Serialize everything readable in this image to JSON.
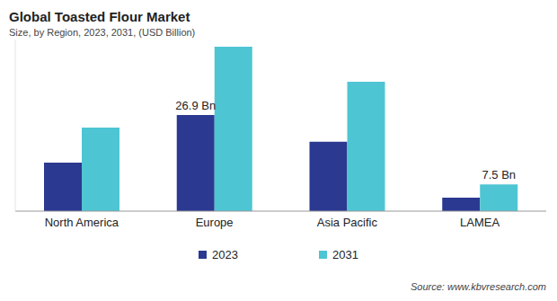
{
  "chart_data": {
    "type": "bar",
    "title": "Global Toasted Flour Market",
    "subtitle": "Size, by Region, 2023, 2031, (USD Billion)",
    "source": "Source: www.kbvresearch.com",
    "categories": [
      "North America",
      "Europe",
      "Asia Pacific",
      "LAMEA"
    ],
    "series": [
      {
        "name": "2023",
        "color": "#2b3990",
        "values": [
          13.6,
          26.9,
          19.4,
          3.8
        ],
        "value_labels": [
          null,
          "26.9 Bn",
          null,
          null
        ]
      },
      {
        "name": "2031",
        "color": "#4ec5d3",
        "values": [
          23.4,
          46.0,
          36.2,
          7.5
        ],
        "value_labels": [
          null,
          null,
          null,
          "7.5 Bn"
        ]
      }
    ],
    "ylim": [
      0,
      48
    ],
    "tick_labels": "x",
    "legend": "bottom",
    "data_labels": true
  }
}
